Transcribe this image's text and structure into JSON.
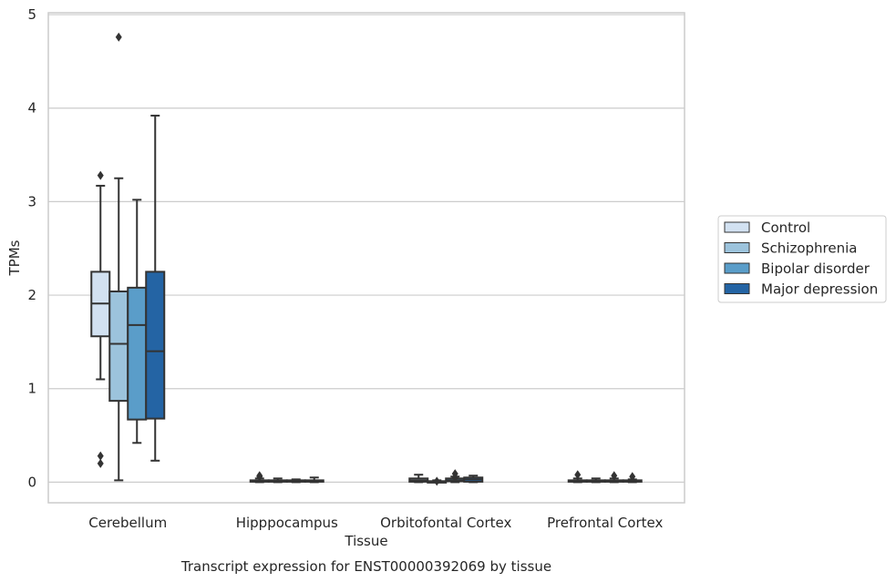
{
  "chart_data": {
    "type": "box",
    "caption": "Transcript expression for ENST00000392069 by tissue",
    "xlabel": "Tissue",
    "ylabel": "TPMs",
    "ylim": [
      -0.22,
      5.02
    ],
    "yticks": [
      0,
      1,
      2,
      3,
      4,
      5
    ],
    "grid": "horizontal",
    "legend_position": "right",
    "categories": [
      "Cerebellum",
      "Hipppocampus",
      "Orbitofontal Cortex",
      "Prefrontal Cortex"
    ],
    "series": [
      {
        "name": "Control",
        "color": "#d2e1f1",
        "boxes": [
          {
            "whislo": 1.1,
            "q1": 1.56,
            "med": 1.91,
            "q3": 2.25,
            "whishi": 3.17,
            "fliers": [
              3.28,
              0.28,
              0.2
            ]
          },
          {
            "whislo": 0.0,
            "q1": 0.005,
            "med": 0.01,
            "q3": 0.02,
            "whishi": 0.04,
            "fliers": [
              0.06,
              0.07
            ]
          },
          {
            "whislo": 0.0,
            "q1": 0.005,
            "med": 0.02,
            "q3": 0.04,
            "whishi": 0.08,
            "fliers": []
          },
          {
            "whislo": 0.0,
            "q1": 0.005,
            "med": 0.01,
            "q3": 0.02,
            "whishi": 0.04,
            "fliers": [
              0.08
            ]
          }
        ]
      },
      {
        "name": "Schizophrenia",
        "color": "#9cc3dc",
        "boxes": [
          {
            "whislo": 0.02,
            "q1": 0.87,
            "med": 1.48,
            "q3": 2.04,
            "whishi": 3.25,
            "fliers": [
              4.76
            ]
          },
          {
            "whislo": 0.0,
            "q1": 0.005,
            "med": 0.01,
            "q3": 0.02,
            "whishi": 0.04,
            "fliers": []
          },
          {
            "whislo": 0.0,
            "q1": 0.005,
            "med": 0.01,
            "q3": 0.01,
            "whishi": 0.02,
            "fliers": [
              0.01
            ]
          },
          {
            "whislo": 0.0,
            "q1": 0.005,
            "med": 0.01,
            "q3": 0.02,
            "whishi": 0.04,
            "fliers": []
          }
        ]
      },
      {
        "name": "Bipolar disorder",
        "color": "#5a9dc9",
        "boxes": [
          {
            "whislo": 0.42,
            "q1": 0.67,
            "med": 1.68,
            "q3": 2.08,
            "whishi": 3.02,
            "fliers": []
          },
          {
            "whislo": 0.0,
            "q1": 0.005,
            "med": 0.01,
            "q3": 0.02,
            "whishi": 0.03,
            "fliers": []
          },
          {
            "whislo": 0.0,
            "q1": 0.01,
            "med": 0.02,
            "q3": 0.04,
            "whishi": 0.06,
            "fliers": [
              0.09,
              0.05
            ]
          },
          {
            "whislo": 0.0,
            "q1": 0.005,
            "med": 0.01,
            "q3": 0.02,
            "whishi": 0.04,
            "fliers": [
              0.07
            ]
          }
        ]
      },
      {
        "name": "Major depression",
        "color": "#2464a4",
        "boxes": [
          {
            "whislo": 0.23,
            "q1": 0.68,
            "med": 1.4,
            "q3": 2.25,
            "whishi": 3.92,
            "fliers": []
          },
          {
            "whislo": 0.0,
            "q1": 0.005,
            "med": 0.01,
            "q3": 0.02,
            "whishi": 0.05,
            "fliers": []
          },
          {
            "whislo": 0.0,
            "q1": 0.005,
            "med": 0.03,
            "q3": 0.05,
            "whishi": 0.07,
            "fliers": []
          },
          {
            "whislo": 0.0,
            "q1": 0.005,
            "med": 0.01,
            "q3": 0.02,
            "whishi": 0.03,
            "fliers": [
              0.06
            ]
          }
        ]
      }
    ]
  }
}
